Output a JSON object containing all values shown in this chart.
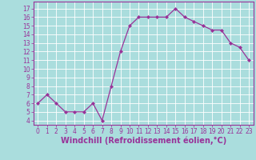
{
  "x": [
    0,
    1,
    2,
    3,
    4,
    5,
    6,
    7,
    8,
    9,
    10,
    11,
    12,
    13,
    14,
    15,
    16,
    17,
    18,
    19,
    20,
    21,
    22,
    23
  ],
  "y": [
    6,
    7,
    6,
    5,
    5,
    5,
    6,
    4,
    8,
    12,
    15,
    16,
    16,
    16,
    16,
    17,
    16,
    15.5,
    15,
    14.5,
    14.5,
    13,
    12.5,
    11
  ],
  "line_color": "#993399",
  "marker": "D",
  "marker_size": 2,
  "bg_color": "#aadddd",
  "grid_color": "#ffffff",
  "xlabel": "Windchill (Refroidissement éolien,°C)",
  "xlabel_fontsize": 7,
  "ylabel_ticks": [
    4,
    5,
    6,
    7,
    8,
    9,
    10,
    11,
    12,
    13,
    14,
    15,
    16,
    17
  ],
  "xlim": [
    -0.5,
    23.5
  ],
  "ylim": [
    3.5,
    17.8
  ],
  "xticks": [
    0,
    1,
    2,
    3,
    4,
    5,
    6,
    7,
    8,
    9,
    10,
    11,
    12,
    13,
    14,
    15,
    16,
    17,
    18,
    19,
    20,
    21,
    22,
    23
  ],
  "xtick_labels": [
    "0",
    "1",
    "2",
    "3",
    "4",
    "5",
    "6",
    "7",
    "8",
    "9",
    "10",
    "11",
    "12",
    "13",
    "14",
    "15",
    "16",
    "17",
    "18",
    "19",
    "20",
    "21",
    "22",
    "23"
  ],
  "tick_color": "#993399",
  "spine_color": "#993399",
  "tick_fontsize": 5.5,
  "xlabel_color": "#993399",
  "xlabel_fontweight": "bold"
}
